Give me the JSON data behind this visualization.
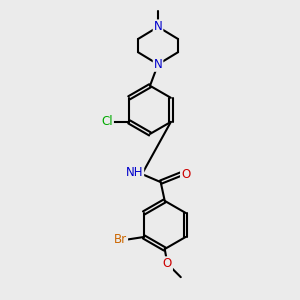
{
  "background_color": "#ebebeb",
  "bond_color": "#000000",
  "bond_width": 1.5,
  "atom_colors": {
    "N": "#0000cc",
    "O": "#cc0000",
    "Cl": "#00aa00",
    "Br": "#cc6600",
    "C": "#000000",
    "H": "#555555"
  },
  "font_size": 8.5,
  "fig_width": 3.0,
  "fig_height": 3.0,
  "dpi": 100,
  "xlim": [
    -2.5,
    2.5
  ],
  "ylim": [
    -5.5,
    5.5
  ]
}
